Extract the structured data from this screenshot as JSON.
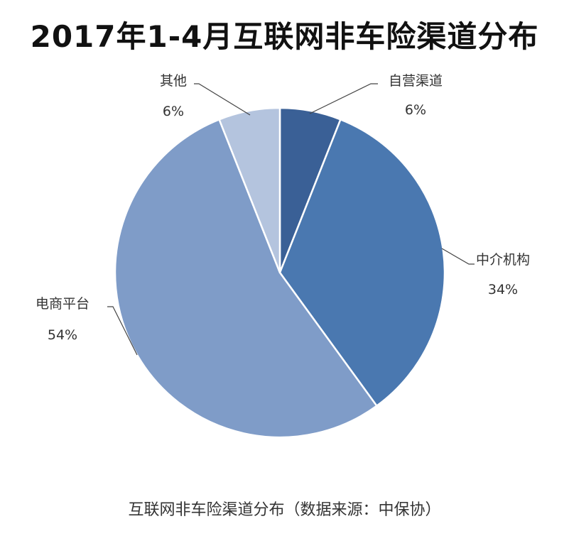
{
  "chart_data": {
    "type": "pie",
    "title": "2017年1-4月互联网非车险渠道分布",
    "categories": [
      "自营渠道",
      "中介机构",
      "电商平台",
      "其他"
    ],
    "values": [
      6,
      34,
      54,
      6
    ],
    "value_labels": [
      "6%",
      "34%",
      "54%",
      "6%"
    ],
    "colors": [
      "#3A6096",
      "#4A78B0",
      "#7F9CC8",
      "#B4C4DE"
    ],
    "legend": "none"
  },
  "caption": "互联网非车险渠道分布（数据来源：中保协）"
}
